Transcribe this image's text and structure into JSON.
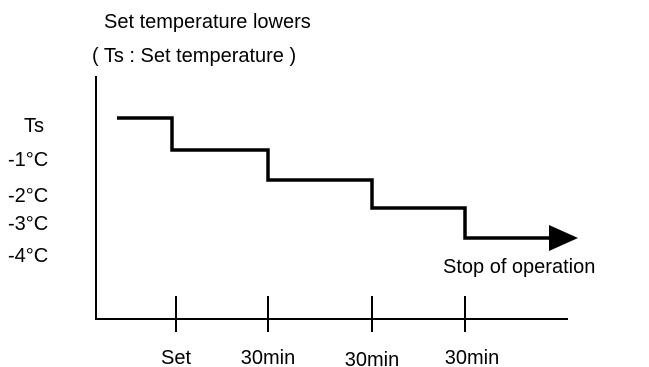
{
  "title": {
    "line1": "Set temperature lowers",
    "line2": "( Ts : Set temperature )"
  },
  "y_levels": [
    "Ts",
    "-1°C",
    "-2°C",
    "-3°C",
    "-4°C"
  ],
  "x_events": [
    "Set",
    "30min",
    "30min",
    "30min"
  ],
  "end_label": "Stop of operation",
  "colors": {
    "stroke": "#000000",
    "background": "#ffffff"
  }
}
